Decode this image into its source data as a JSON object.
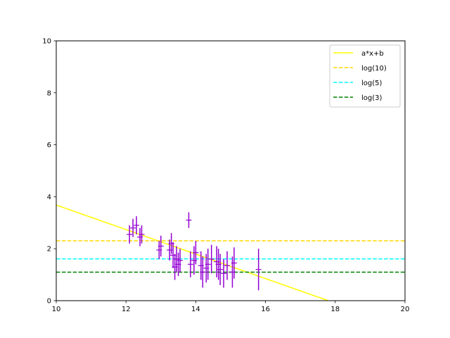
{
  "chart_data": {
    "type": "scatter",
    "title": "",
    "xlabel": "",
    "ylabel": "",
    "xlim": [
      10,
      20
    ],
    "ylim": [
      0,
      10
    ],
    "xticks": [
      "10",
      "12",
      "14",
      "16",
      "18",
      "20"
    ],
    "yticks": [
      "0",
      "2",
      "4",
      "6",
      "8",
      "10"
    ],
    "grid": false,
    "legend_position": "top-right",
    "series": [
      {
        "name": "a*x+b",
        "kind": "line",
        "color": "#ffff00",
        "style": "solid",
        "x": [
          10,
          17.8
        ],
        "y": [
          3.68,
          0.0
        ]
      },
      {
        "name": "log(10)",
        "kind": "hline",
        "color": "#ffd700",
        "style": "dashed",
        "y": 2.303
      },
      {
        "name": "log(5)",
        "kind": "hline",
        "color": "#00ffff",
        "style": "dashed",
        "y": 1.609
      },
      {
        "name": "log(3)",
        "kind": "hline",
        "color": "#008000",
        "style": "dashed",
        "y": 1.099
      }
    ],
    "errorbar_points": {
      "color": "#9400d3",
      "points": [
        {
          "x": 12.1,
          "y": 2.55,
          "err": 0.35
        },
        {
          "x": 12.2,
          "y": 2.8,
          "err": 0.35
        },
        {
          "x": 12.3,
          "y": 2.9,
          "err": 0.35
        },
        {
          "x": 12.4,
          "y": 2.45,
          "err": 0.35
        },
        {
          "x": 12.45,
          "y": 2.55,
          "err": 0.35
        },
        {
          "x": 12.95,
          "y": 1.95,
          "err": 0.35
        },
        {
          "x": 13.0,
          "y": 2.1,
          "err": 0.4
        },
        {
          "x": 13.25,
          "y": 1.95,
          "err": 0.4
        },
        {
          "x": 13.3,
          "y": 2.2,
          "err": 0.4
        },
        {
          "x": 13.35,
          "y": 1.75,
          "err": 0.5
        },
        {
          "x": 13.4,
          "y": 1.3,
          "err": 0.5
        },
        {
          "x": 13.45,
          "y": 1.6,
          "err": 0.5
        },
        {
          "x": 13.5,
          "y": 1.4,
          "err": 0.45
        },
        {
          "x": 13.55,
          "y": 1.55,
          "err": 0.45
        },
        {
          "x": 13.8,
          "y": 3.1,
          "err": 0.3
        },
        {
          "x": 13.85,
          "y": 1.4,
          "err": 0.5
        },
        {
          "x": 13.95,
          "y": 1.55,
          "err": 0.55
        },
        {
          "x": 14.0,
          "y": 1.85,
          "err": 0.45
        },
        {
          "x": 14.15,
          "y": 1.35,
          "err": 0.55
        },
        {
          "x": 14.2,
          "y": 1.1,
          "err": 0.6
        },
        {
          "x": 14.3,
          "y": 1.25,
          "err": 0.55
        },
        {
          "x": 14.35,
          "y": 1.4,
          "err": 0.6
        },
        {
          "x": 14.45,
          "y": 1.6,
          "err": 0.55
        },
        {
          "x": 14.6,
          "y": 1.5,
          "err": 0.6
        },
        {
          "x": 14.65,
          "y": 1.4,
          "err": 0.6
        },
        {
          "x": 14.7,
          "y": 1.2,
          "err": 0.6
        },
        {
          "x": 14.8,
          "y": 1.05,
          "err": 0.55
        },
        {
          "x": 14.9,
          "y": 1.35,
          "err": 0.55
        },
        {
          "x": 15.05,
          "y": 1.1,
          "err": 0.6
        },
        {
          "x": 15.1,
          "y": 1.45,
          "err": 0.6
        },
        {
          "x": 15.8,
          "y": 1.2,
          "err": 0.8
        }
      ]
    }
  }
}
